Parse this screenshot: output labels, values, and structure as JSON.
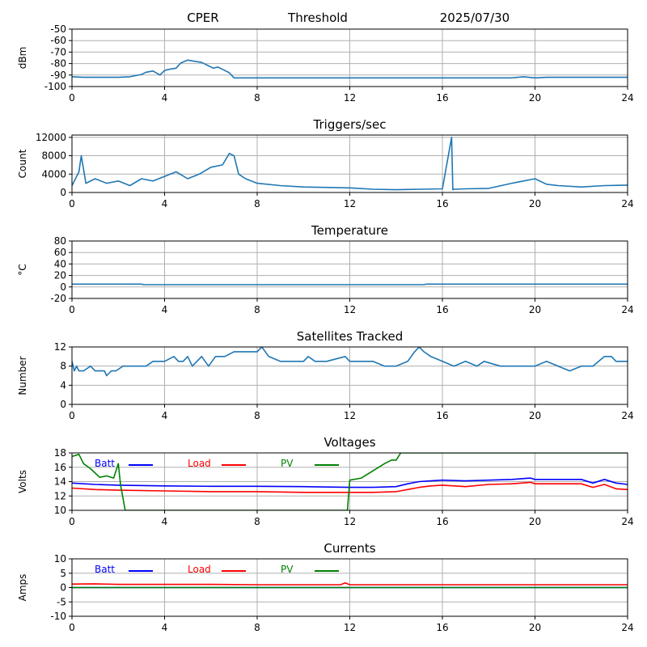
{
  "header": {
    "station": "CPER",
    "mode": "Threshold",
    "date": "2025/07/30"
  },
  "colors": {
    "series_default": "#1f77b4",
    "batt": "#0000ff",
    "load": "#ff0000",
    "pv": "#008000",
    "grid": "#b0b0b0"
  },
  "chart_data": [
    {
      "type": "line",
      "title": "",
      "ylabel": "dBm",
      "xlim": [
        0,
        24
      ],
      "ylim": [
        -100,
        -50
      ],
      "xticks": [
        0,
        4,
        8,
        12,
        16,
        20,
        24
      ],
      "yticks": [
        -100,
        -90,
        -80,
        -70,
        -60,
        -50
      ],
      "grid": true,
      "series": [
        {
          "color": "#1f77b4",
          "x": [
            0,
            0.5,
            1,
            2,
            2.5,
            3,
            3.2,
            3.5,
            3.8,
            4,
            4.2,
            4.5,
            4.7,
            5,
            5.3,
            5.6,
            5.9,
            6.1,
            6.3,
            6.5,
            6.8,
            7,
            8,
            10,
            12,
            16,
            19,
            19.5,
            20,
            20.5,
            24
          ],
          "y": [
            -91.5,
            -92,
            -92,
            -92,
            -91.5,
            -89.5,
            -87.5,
            -86.5,
            -90,
            -86,
            -85,
            -84,
            -79.5,
            -77,
            -78,
            -79,
            -82,
            -84,
            -83,
            -85,
            -88,
            -92.5,
            -92.5,
            -92.5,
            -92.5,
            -92.5,
            -92.5,
            -91.5,
            -92.5,
            -92,
            -92
          ]
        }
      ]
    },
    {
      "type": "line",
      "title": "Triggers/sec",
      "ylabel": "Count",
      "xlim": [
        0,
        24
      ],
      "ylim": [
        0,
        12500
      ],
      "xticks": [
        0,
        4,
        8,
        12,
        16,
        20,
        24
      ],
      "yticks": [
        0,
        4000,
        8000,
        12000
      ],
      "grid": true,
      "series": [
        {
          "color": "#1f77b4",
          "x": [
            0,
            0.3,
            0.4,
            0.6,
            1,
            1.5,
            2,
            2.5,
            3,
            3.5,
            4,
            4.5,
            5,
            5.5,
            6,
            6.5,
            6.8,
            7,
            7.2,
            7.5,
            8,
            9,
            10,
            12,
            13,
            14,
            15,
            16,
            16.4,
            16.45,
            16.5,
            17,
            18,
            19,
            19.5,
            20,
            20.5,
            21,
            22,
            23,
            24
          ],
          "y": [
            1500,
            4500,
            8000,
            2000,
            3000,
            2000,
            2500,
            1500,
            3000,
            2500,
            3500,
            4500,
            3000,
            4000,
            5500,
            6000,
            8500,
            8000,
            4000,
            3000,
            2000,
            1500,
            1200,
            1000,
            700,
            600,
            700,
            800,
            12000,
            600,
            700,
            800,
            900,
            2000,
            2500,
            3000,
            1800,
            1500,
            1200,
            1500,
            1600
          ]
        }
      ]
    },
    {
      "type": "line",
      "title": "Temperature",
      "ylabel": "°C",
      "xlim": [
        0,
        24
      ],
      "ylim": [
        -20,
        80
      ],
      "xticks": [
        0,
        4,
        8,
        12,
        16,
        20,
        24
      ],
      "yticks": [
        -20,
        0,
        20,
        40,
        60,
        80
      ],
      "grid": true,
      "series": [
        {
          "color": "#1f77b4",
          "x": [
            0,
            3,
            3.1,
            15.2,
            15.3,
            24
          ],
          "y": [
            5,
            5,
            4,
            4,
            5,
            5
          ]
        }
      ]
    },
    {
      "type": "line",
      "title": "Satellites Tracked",
      "ylabel": "Number",
      "xlim": [
        0,
        24
      ],
      "ylim": [
        0,
        12
      ],
      "xticks": [
        0,
        4,
        8,
        12,
        16,
        20,
        24
      ],
      "yticks": [
        0,
        4,
        8,
        12
      ],
      "grid": true,
      "series": [
        {
          "color": "#1f77b4",
          "x": [
            0,
            0.1,
            0.2,
            0.3,
            0.5,
            0.8,
            1.0,
            1.2,
            1.4,
            1.5,
            1.7,
            1.9,
            2.2,
            2.6,
            3.0,
            3.2,
            3.5,
            4.0,
            4.4,
            4.6,
            4.8,
            5.0,
            5.2,
            5.6,
            5.9,
            6.2,
            6.6,
            7.0,
            7.5,
            8.0,
            8.2,
            8.5,
            9.0,
            10.0,
            10.2,
            10.5,
            11.0,
            11.8,
            12.0,
            13.0,
            13.5,
            14.0,
            14.5,
            14.8,
            15.0,
            15.2,
            15.5,
            16.0,
            16.5,
            17.0,
            17.5,
            17.8,
            18.5,
            19.5,
            20.0,
            20.5,
            21.0,
            21.5,
            22.0,
            22.5,
            23.0,
            23.3,
            23.5,
            24
          ],
          "y": [
            9,
            7,
            8,
            7,
            7,
            8,
            7,
            7,
            7,
            6,
            7,
            7,
            8,
            8,
            8,
            8,
            9,
            9,
            10,
            9,
            9,
            10,
            8,
            10,
            8,
            10,
            10,
            11,
            11,
            11,
            12,
            10,
            9,
            9,
            10,
            9,
            9,
            10,
            9,
            9,
            8,
            8,
            9,
            11,
            12,
            11,
            10,
            9,
            8,
            9,
            8,
            9,
            8,
            8,
            8,
            9,
            8,
            7,
            8,
            8,
            10,
            10,
            9,
            9
          ]
        }
      ]
    },
    {
      "type": "line",
      "title": "Voltages",
      "ylabel": "Volts",
      "xlim": [
        0,
        24
      ],
      "ylim": [
        10,
        18
      ],
      "xticks": [
        0,
        4,
        8,
        12,
        16,
        20,
        24
      ],
      "yticks": [
        10,
        12,
        14,
        16,
        18
      ],
      "grid": true,
      "legend": "inside-top-left",
      "series": [
        {
          "name": "Batt",
          "color": "#0000ff",
          "x": [
            0,
            1,
            2,
            4,
            6,
            8,
            10,
            12,
            13,
            14,
            14.5,
            15,
            15.5,
            16,
            17,
            18,
            19,
            19.8,
            20,
            21,
            22,
            22.5,
            23,
            23.5,
            24
          ],
          "y": [
            13.8,
            13.6,
            13.5,
            13.4,
            13.35,
            13.35,
            13.3,
            13.2,
            13.2,
            13.3,
            13.7,
            14,
            14.1,
            14.2,
            14.1,
            14.2,
            14.3,
            14.5,
            14.3,
            14.3,
            14.3,
            13.8,
            14.3,
            13.8,
            13.6
          ]
        },
        {
          "name": "Load",
          "color": "#ff0000",
          "x": [
            0,
            1,
            2,
            4,
            6,
            8,
            10,
            12,
            13,
            14,
            14.5,
            15,
            15.5,
            16,
            17,
            18,
            19,
            19.8,
            20,
            21,
            22,
            22.5,
            23,
            23.5,
            24
          ],
          "y": [
            13.1,
            12.9,
            12.8,
            12.7,
            12.6,
            12.6,
            12.5,
            12.5,
            12.5,
            12.6,
            12.9,
            13.2,
            13.4,
            13.5,
            13.3,
            13.6,
            13.7,
            13.9,
            13.7,
            13.7,
            13.7,
            13.2,
            13.6,
            13,
            12.9
          ]
        },
        {
          "name": "PV",
          "color": "#008000",
          "x": [
            0,
            0.3,
            0.5,
            0.8,
            1.2,
            1.5,
            1.8,
            2.0,
            2.1,
            2.3,
            11.9,
            12.0,
            12.5,
            13.0,
            13.5,
            13.8,
            14.0,
            14.2,
            24
          ],
          "y": [
            17.5,
            17.8,
            16.5,
            15.8,
            14.6,
            14.8,
            14.5,
            16.5,
            13.5,
            10,
            10,
            14.2,
            14.5,
            15.5,
            16.5,
            17,
            17,
            18,
            18
          ]
        }
      ]
    },
    {
      "type": "line",
      "title": "Currents",
      "ylabel": "Amps",
      "xlim": [
        0,
        24
      ],
      "ylim": [
        -10,
        10
      ],
      "xticks": [
        0,
        4,
        8,
        12,
        16,
        20,
        24
      ],
      "yticks": [
        -10,
        -5,
        0,
        5,
        10
      ],
      "grid": true,
      "legend": "inside-top-left",
      "series": [
        {
          "name": "Batt",
          "color": "#0000ff",
          "x": [
            0,
            24
          ],
          "y": [
            0,
            0
          ]
        },
        {
          "name": "Load",
          "color": "#ff0000",
          "x": [
            0,
            1,
            2,
            6,
            8,
            11.6,
            11.8,
            12,
            24
          ],
          "y": [
            1.2,
            1.3,
            1.1,
            1.1,
            1.0,
            1.0,
            1.6,
            1.0,
            1.0
          ]
        },
        {
          "name": "PV",
          "color": "#008000",
          "x": [
            0,
            24
          ],
          "y": [
            0,
            0
          ]
        }
      ]
    }
  ]
}
